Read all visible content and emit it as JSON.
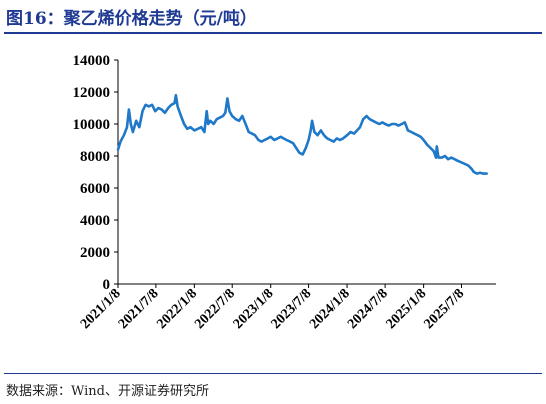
{
  "figure": {
    "title": "图16：聚乙烯价格走势（元/吨）",
    "source": "数据来源：Wind、开源证券研究所"
  },
  "colors": {
    "title": "#1f3a93",
    "line": "#1f78c8",
    "axis": "#000000"
  },
  "chart_data": {
    "type": "line",
    "title": "",
    "xlabel": "",
    "ylabel": "",
    "ylim": [
      0,
      14000
    ],
    "yticks": [
      0,
      2000,
      4000,
      6000,
      8000,
      10000,
      12000,
      14000
    ],
    "yticklabels": [
      "0",
      "2000",
      "4000",
      "6000",
      "8000",
      "10000",
      "12000",
      "14000"
    ],
    "xlim": [
      "2021-01-08",
      "2025-12-20"
    ],
    "xticks": [
      "2021-01-08",
      "2021-07-08",
      "2022-01-08",
      "2022-07-08",
      "2023-01-08",
      "2023-07-08",
      "2024-01-08",
      "2024-07-08",
      "2025-01-08",
      "2025-07-08"
    ],
    "xticklabels": [
      "2021/1/8",
      "2021/7/8",
      "2022/1/8",
      "2022/7/8",
      "2023/1/8",
      "2023/7/8",
      "2024/1/8",
      "2024/7/8",
      "2025/1/8",
      "2025/7/8"
    ],
    "grid": false,
    "legend": "none",
    "series": [
      {
        "name": "",
        "points": [
          [
            "2021-01-08",
            8400
          ],
          [
            "2021-01-20",
            8900
          ],
          [
            "2021-02-05",
            9300
          ],
          [
            "2021-02-20",
            9800
          ],
          [
            "2021-03-01",
            10900
          ],
          [
            "2021-03-10",
            10000
          ],
          [
            "2021-03-20",
            9500
          ],
          [
            "2021-04-05",
            10200
          ],
          [
            "2021-04-20",
            9800
          ],
          [
            "2021-05-05",
            10800
          ],
          [
            "2021-05-20",
            11200
          ],
          [
            "2021-06-05",
            11100
          ],
          [
            "2021-06-20",
            11200
          ],
          [
            "2021-07-05",
            10800
          ],
          [
            "2021-07-20",
            11000
          ],
          [
            "2021-08-05",
            10900
          ],
          [
            "2021-08-20",
            10700
          ],
          [
            "2021-09-05",
            11000
          ],
          [
            "2021-09-20",
            11200
          ],
          [
            "2021-10-05",
            11300
          ],
          [
            "2021-10-12",
            11800
          ],
          [
            "2021-10-20",
            11100
          ],
          [
            "2021-11-05",
            10500
          ],
          [
            "2021-11-20",
            10000
          ],
          [
            "2021-12-05",
            9700
          ],
          [
            "2021-12-20",
            9800
          ],
          [
            "2022-01-08",
            9600
          ],
          [
            "2022-01-25",
            9700
          ],
          [
            "2022-02-10",
            9800
          ],
          [
            "2022-02-25",
            9500
          ],
          [
            "2022-03-08",
            10800
          ],
          [
            "2022-03-15",
            10000
          ],
          [
            "2022-03-25",
            10200
          ],
          [
            "2022-04-10",
            10000
          ],
          [
            "2022-04-25",
            10300
          ],
          [
            "2022-05-10",
            10400
          ],
          [
            "2022-05-25",
            10500
          ],
          [
            "2022-06-05",
            10700
          ],
          [
            "2022-06-15",
            11600
          ],
          [
            "2022-06-25",
            10800
          ],
          [
            "2022-07-08",
            10500
          ],
          [
            "2022-07-25",
            10300
          ],
          [
            "2022-08-10",
            10200
          ],
          [
            "2022-08-25",
            10500
          ],
          [
            "2022-09-10",
            10000
          ],
          [
            "2022-09-25",
            9500
          ],
          [
            "2022-10-10",
            9400
          ],
          [
            "2022-10-25",
            9300
          ],
          [
            "2022-11-10",
            9000
          ],
          [
            "2022-11-25",
            8900
          ],
          [
            "2022-12-10",
            9000
          ],
          [
            "2022-12-25",
            9100
          ],
          [
            "2023-01-08",
            9200
          ],
          [
            "2023-01-25",
            9000
          ],
          [
            "2023-02-10",
            9100
          ],
          [
            "2023-02-25",
            9200
          ],
          [
            "2023-03-10",
            9100
          ],
          [
            "2023-03-25",
            9000
          ],
          [
            "2023-04-10",
            8900
          ],
          [
            "2023-04-25",
            8800
          ],
          [
            "2023-05-10",
            8500
          ],
          [
            "2023-05-25",
            8200
          ],
          [
            "2023-06-10",
            8100
          ],
          [
            "2023-06-25",
            8500
          ],
          [
            "2023-07-08",
            9000
          ],
          [
            "2023-07-18",
            9600
          ],
          [
            "2023-07-25",
            10200
          ],
          [
            "2023-08-05",
            9500
          ],
          [
            "2023-08-20",
            9300
          ],
          [
            "2023-09-05",
            9600
          ],
          [
            "2023-09-20",
            9300
          ],
          [
            "2023-10-05",
            9100
          ],
          [
            "2023-10-20",
            9000
          ],
          [
            "2023-11-05",
            8900
          ],
          [
            "2023-11-20",
            9100
          ],
          [
            "2023-12-05",
            9000
          ],
          [
            "2023-12-20",
            9100
          ],
          [
            "2024-01-08",
            9300
          ],
          [
            "2024-01-25",
            9500
          ],
          [
            "2024-02-10",
            9400
          ],
          [
            "2024-02-25",
            9600
          ],
          [
            "2024-03-10",
            9800
          ],
          [
            "2024-03-25",
            10300
          ],
          [
            "2024-04-10",
            10500
          ],
          [
            "2024-04-25",
            10300
          ],
          [
            "2024-05-10",
            10200
          ],
          [
            "2024-05-25",
            10100
          ],
          [
            "2024-06-10",
            10000
          ],
          [
            "2024-06-25",
            10100
          ],
          [
            "2024-07-08",
            10000
          ],
          [
            "2024-07-25",
            9900
          ],
          [
            "2024-08-10",
            10000
          ],
          [
            "2024-08-25",
            10000
          ],
          [
            "2024-09-10",
            9900
          ],
          [
            "2024-09-25",
            10000
          ],
          [
            "2024-10-10",
            10100
          ],
          [
            "2024-10-25",
            9600
          ],
          [
            "2024-11-10",
            9500
          ],
          [
            "2024-11-25",
            9400
          ],
          [
            "2024-12-10",
            9300
          ],
          [
            "2024-12-25",
            9200
          ],
          [
            "2025-01-08",
            9000
          ],
          [
            "2025-01-25",
            8700
          ],
          [
            "2025-02-10",
            8500
          ],
          [
            "2025-02-25",
            8300
          ],
          [
            "2025-03-08",
            7900
          ],
          [
            "2025-03-12",
            8600
          ],
          [
            "2025-03-20",
            7900
          ],
          [
            "2025-04-05",
            7900
          ],
          [
            "2025-04-20",
            8000
          ],
          [
            "2025-05-05",
            7800
          ],
          [
            "2025-05-20",
            7900
          ],
          [
            "2025-06-05",
            7800
          ],
          [
            "2025-06-20",
            7700
          ],
          [
            "2025-07-08",
            7600
          ],
          [
            "2025-07-25",
            7500
          ],
          [
            "2025-08-10",
            7400
          ],
          [
            "2025-08-25",
            7200
          ],
          [
            "2025-09-05",
            7000
          ],
          [
            "2025-09-20",
            6900
          ],
          [
            "2025-10-05",
            6950
          ],
          [
            "2025-10-20",
            6900
          ],
          [
            "2025-11-05",
            6900
          ]
        ]
      }
    ]
  }
}
